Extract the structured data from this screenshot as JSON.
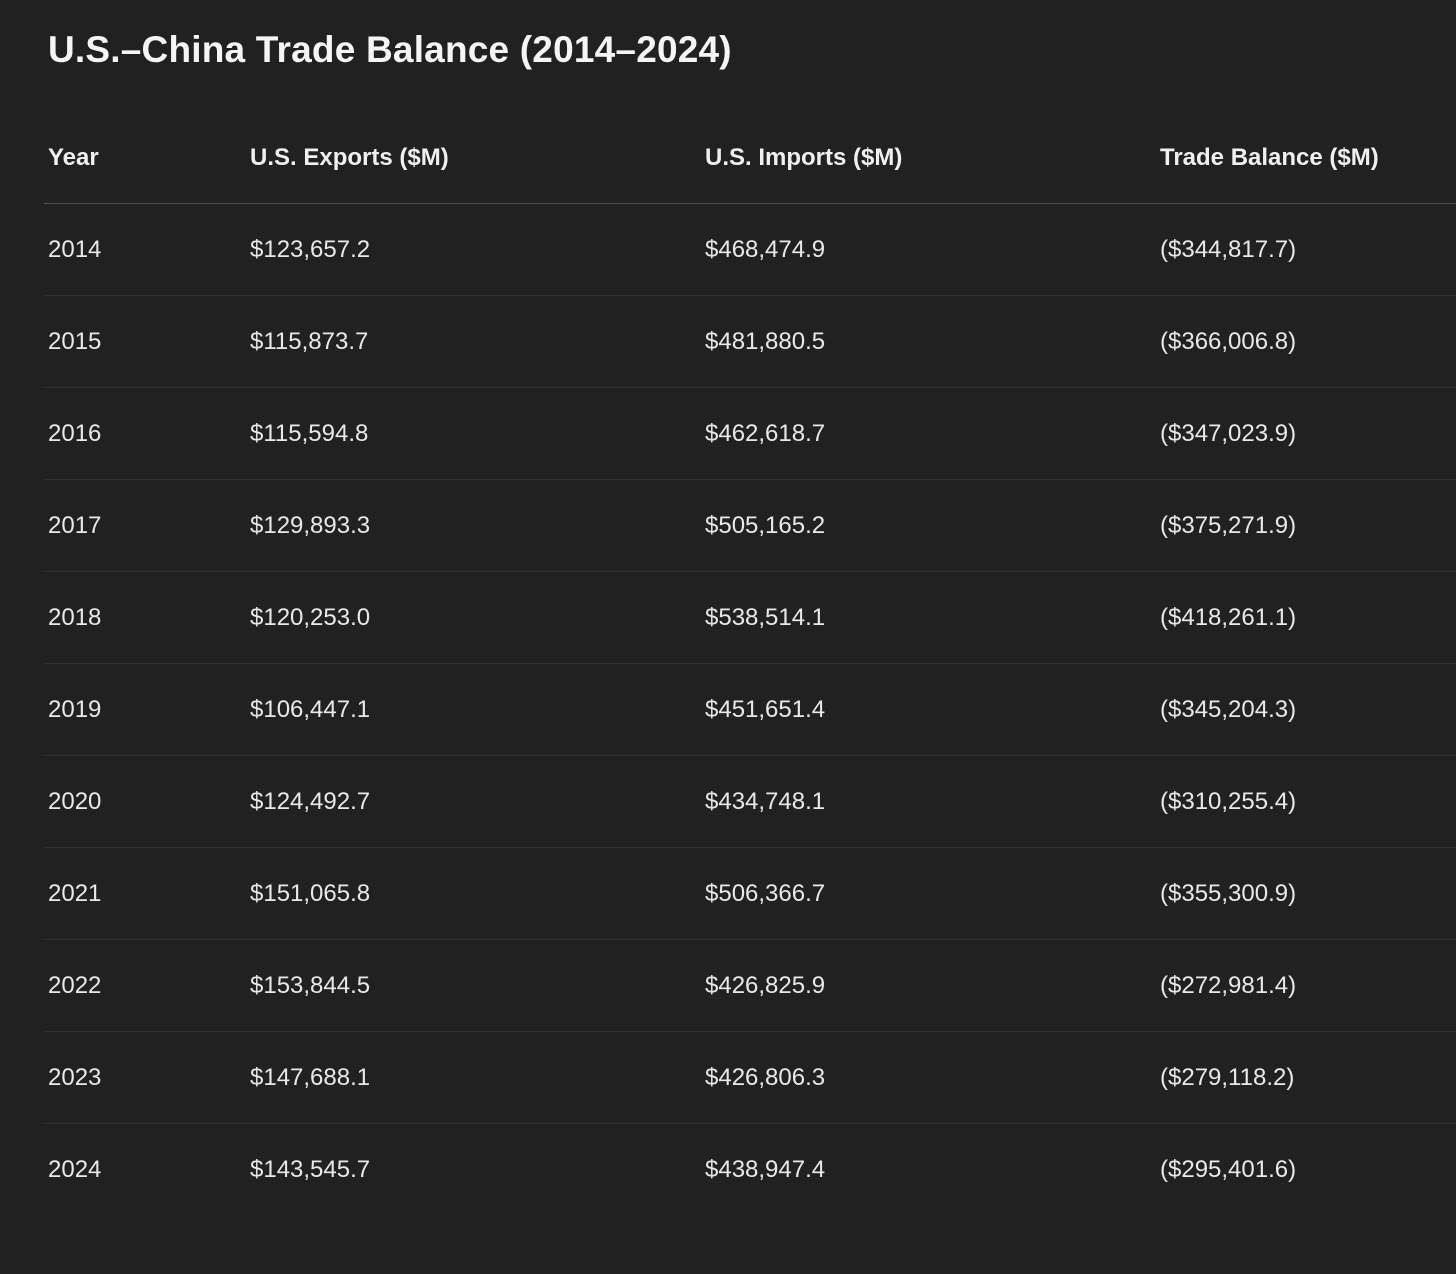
{
  "page": {
    "title": "U.S.–China Trade Balance (2014–2024)",
    "background_color": "#212121",
    "text_color": "#e9e9e9",
    "title_color": "#f5f5f5",
    "header_divider_color": "#4f4f4f",
    "row_divider_color": "#323232"
  },
  "table": {
    "columns": [
      "Year",
      "U.S. Exports ($M)",
      "U.S. Imports ($M)",
      "Trade Balance ($M)"
    ],
    "rows": [
      {
        "year": "2014",
        "exports": "$123,657.2",
        "imports": "$468,474.9",
        "balance": "($344,817.7)"
      },
      {
        "year": "2015",
        "exports": "$115,873.7",
        "imports": "$481,880.5",
        "balance": "($366,006.8)"
      },
      {
        "year": "2016",
        "exports": "$115,594.8",
        "imports": "$462,618.7",
        "balance": "($347,023.9)"
      },
      {
        "year": "2017",
        "exports": "$129,893.3",
        "imports": "$505,165.2",
        "balance": "($375,271.9)"
      },
      {
        "year": "2018",
        "exports": "$120,253.0",
        "imports": "$538,514.1",
        "balance": "($418,261.1)"
      },
      {
        "year": "2019",
        "exports": "$106,447.1",
        "imports": "$451,651.4",
        "balance": "($345,204.3)"
      },
      {
        "year": "2020",
        "exports": "$124,492.7",
        "imports": "$434,748.1",
        "balance": "($310,255.4)"
      },
      {
        "year": "2021",
        "exports": "$151,065.8",
        "imports": "$506,366.7",
        "balance": "($355,300.9)"
      },
      {
        "year": "2022",
        "exports": "$153,844.5",
        "imports": "$426,825.9",
        "balance": "($272,981.4)"
      },
      {
        "year": "2023",
        "exports": "$147,688.1",
        "imports": "$426,806.3",
        "balance": "($279,118.2)"
      },
      {
        "year": "2024",
        "exports": "$143,545.7",
        "imports": "$438,947.4",
        "balance": "($295,401.6)"
      }
    ]
  },
  "chart_data": {
    "type": "table",
    "title": "U.S.–China Trade Balance (2014–2024)",
    "columns": [
      "Year",
      "U.S. Exports ($M)",
      "U.S. Imports ($M)",
      "Trade Balance ($M)"
    ],
    "years": [
      2014,
      2015,
      2016,
      2017,
      2018,
      2019,
      2020,
      2021,
      2022,
      2023,
      2024
    ],
    "us_exports_millions": [
      123657.2,
      115873.7,
      115594.8,
      129893.3,
      120253.0,
      106447.1,
      124492.7,
      151065.8,
      153844.5,
      147688.1,
      143545.7
    ],
    "us_imports_millions": [
      468474.9,
      481880.5,
      462618.7,
      505165.2,
      538514.1,
      451651.4,
      434748.1,
      506366.7,
      426825.9,
      426806.3,
      438947.4
    ],
    "trade_balance_millions": [
      -344817.7,
      -366006.8,
      -347023.9,
      -375271.9,
      -418261.1,
      -345204.3,
      -310255.4,
      -355300.9,
      -272981.4,
      -279118.2,
      -295401.6
    ]
  }
}
